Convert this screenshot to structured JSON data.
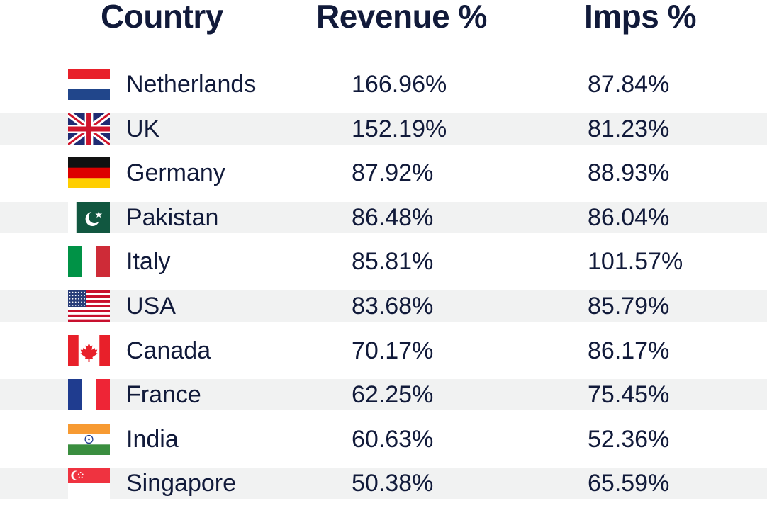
{
  "chart_data": {
    "type": "table",
    "columns": [
      "Country",
      "Revenue %",
      "Imps %"
    ],
    "rows": [
      {
        "flag": "netherlands-flag-icon",
        "country": "Netherlands",
        "revenue": "166.96%",
        "imps": "87.84%"
      },
      {
        "flag": "uk-flag-icon",
        "country": "UK",
        "revenue": "152.19%",
        "imps": "81.23%"
      },
      {
        "flag": "germany-flag-icon",
        "country": "Germany",
        "revenue": "87.92%",
        "imps": "88.93%"
      },
      {
        "flag": "pakistan-flag-icon",
        "country": "Pakistan",
        "revenue": "86.48%",
        "imps": "86.04%"
      },
      {
        "flag": "italy-flag-icon",
        "country": "Italy",
        "revenue": "85.81%",
        "imps": "101.57%"
      },
      {
        "flag": "usa-flag-icon",
        "country": "USA",
        "revenue": "83.68%",
        "imps": "85.79%"
      },
      {
        "flag": "canada-flag-icon",
        "country": "Canada",
        "revenue": "70.17%",
        "imps": "86.17%"
      },
      {
        "flag": "france-flag-icon",
        "country": "France",
        "revenue": "62.25%",
        "imps": "75.45%"
      },
      {
        "flag": "india-flag-icon",
        "country": "India",
        "revenue": "60.63%",
        "imps": "52.36%"
      },
      {
        "flag": "singapore-flag-icon",
        "country": "Singapore",
        "revenue": "50.38%",
        "imps": "65.59%"
      }
    ],
    "row_shading": "alternating",
    "colors": {
      "text": "#111a3a",
      "stripe": "#f1f2f2"
    }
  }
}
